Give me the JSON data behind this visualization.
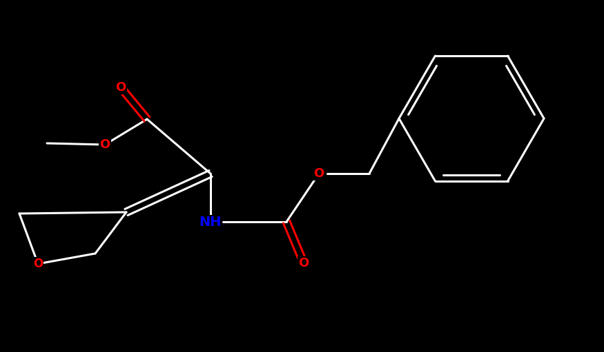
{
  "bg_color": "#000000",
  "bond_color": "#ffffff",
  "oxygen_color": "#ff0000",
  "nitrogen_color": "#0000ff",
  "lw": 2.2,
  "figsize": [
    8.75,
    5.11
  ],
  "dpi": 100,
  "xlim": [
    0,
    875
  ],
  "ylim": [
    0,
    511
  ]
}
